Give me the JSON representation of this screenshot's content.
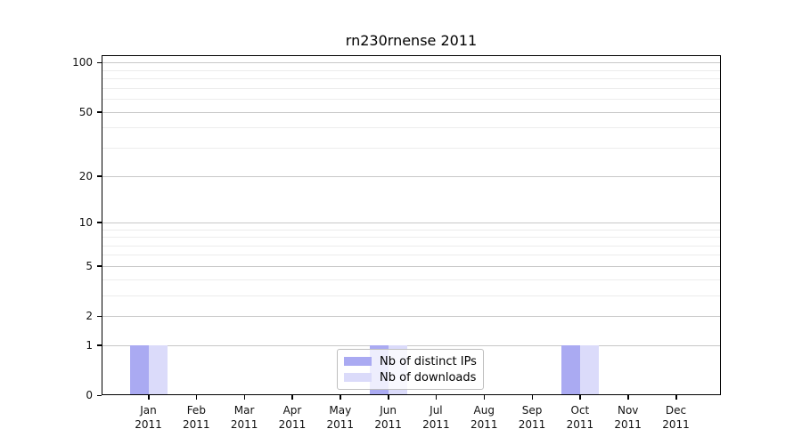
{
  "chart_data": {
    "type": "bar",
    "title": "rn230rnense 2011",
    "x_axis": {
      "months": [
        "Jan",
        "Feb",
        "Mar",
        "Apr",
        "May",
        "Jun",
        "Jul",
        "Aug",
        "Sep",
        "Oct",
        "Nov",
        "Dec"
      ],
      "year": "2011"
    },
    "categories": [
      "Jan 2011",
      "Feb 2011",
      "Mar 2011",
      "Apr 2011",
      "May 2011",
      "Jun 2011",
      "Jul 2011",
      "Aug 2011",
      "Sep 2011",
      "Oct 2011",
      "Nov 2011",
      "Dec 2011"
    ],
    "series": [
      {
        "name": "Nb of distinct IPs",
        "color": "#aaaaf2",
        "values": [
          1,
          0,
          0,
          0,
          0,
          1,
          0,
          0,
          0,
          1,
          0,
          0
        ]
      },
      {
        "name": "Nb of downloads",
        "color": "#dbdbfa",
        "values": [
          1,
          0,
          0,
          0,
          0,
          1,
          0,
          0,
          0,
          1,
          0,
          0
        ]
      }
    ],
    "y_axis": {
      "scale": "log1p",
      "major_ticks": [
        0,
        1,
        2,
        5,
        10,
        20,
        50,
        100
      ],
      "minor_ticks": [
        3,
        4,
        6,
        7,
        8,
        9,
        30,
        40,
        60,
        70,
        80,
        90
      ],
      "ylim": [
        0,
        111
      ]
    },
    "legend": {
      "position": "lower center"
    },
    "grid": {
      "major_color": "#c8c8c8",
      "minor_color": "#ececec"
    },
    "frame_color": "#000000",
    "background": "#ffffff"
  }
}
